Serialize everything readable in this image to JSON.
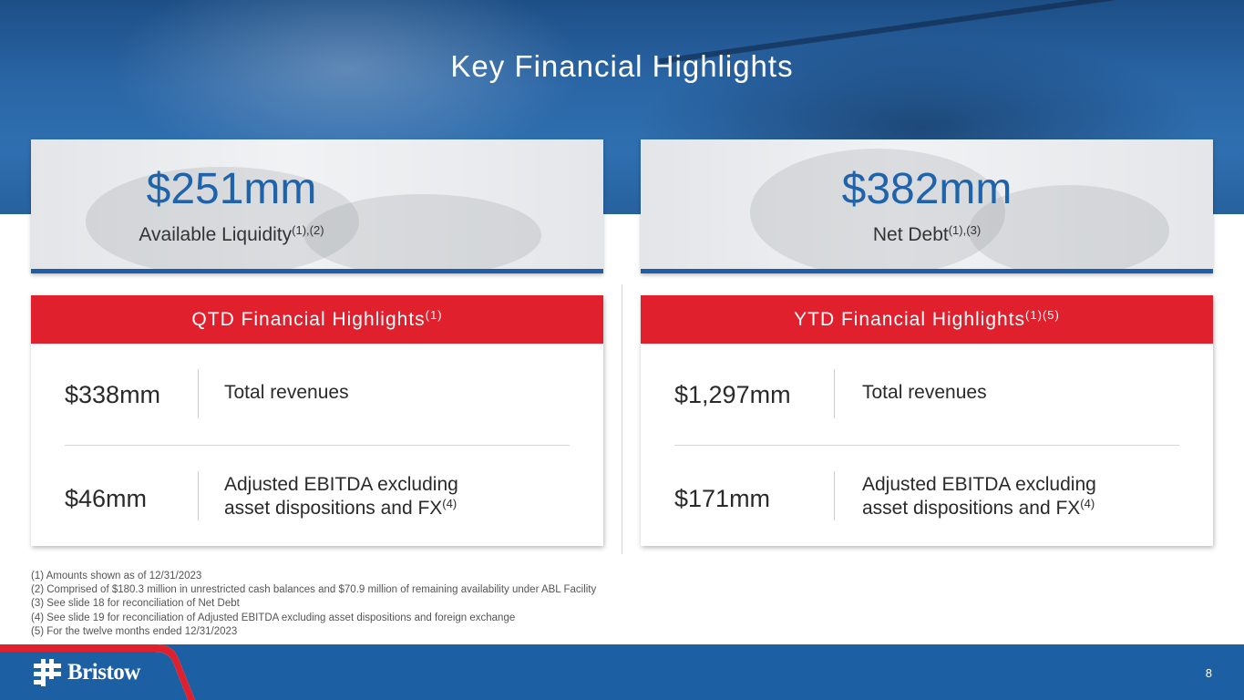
{
  "slide": {
    "title": "Key Financial Highlights",
    "page_number": "8"
  },
  "kpis": [
    {
      "value": "$251mm",
      "label": "Available Liquidity",
      "note": "(1),(2)"
    },
    {
      "value": "$382mm",
      "label": "Net Debt",
      "note": "(1),(3)"
    }
  ],
  "qtd": {
    "heading": "QTD Financial Highlights",
    "heading_note": "(1)",
    "rows": [
      {
        "value": "$338mm",
        "desc_line1": "Total revenues"
      },
      {
        "value": "$46mm",
        "desc_line1": "Adjusted EBITDA excluding",
        "desc_line2": "asset dispositions and FX",
        "note": "(4)"
      }
    ]
  },
  "ytd": {
    "heading": "YTD Financial Highlights",
    "heading_note": "(1)(5)",
    "rows": [
      {
        "value": "$1,297mm",
        "desc_line1": "Total revenues"
      },
      {
        "value": "$171mm",
        "desc_line1": "Adjusted EBITDA excluding",
        "desc_line2": "asset dispositions and FX",
        "note": "(4)"
      }
    ]
  },
  "footnotes": [
    "(1) Amounts shown as of 12/31/2023",
    "(2) Comprised of $180.3 million in unrestricted cash balances and $70.9 million of remaining availability under ABL Facility",
    "(3) See slide 18 for reconciliation of Net Debt",
    "(4) See slide 19 for reconciliation of Adjusted EBITDA excluding asset dispositions and foreign exchange",
    "(5) For the twelve months ended 12/31/2023"
  ],
  "logo": {
    "wordmark": "Bristow",
    "icon": "bristow-mark-icon"
  },
  "colors": {
    "brand_blue": "#1d5fa3",
    "accent_red": "#e1202d",
    "value_blue": "#1f63aa"
  }
}
